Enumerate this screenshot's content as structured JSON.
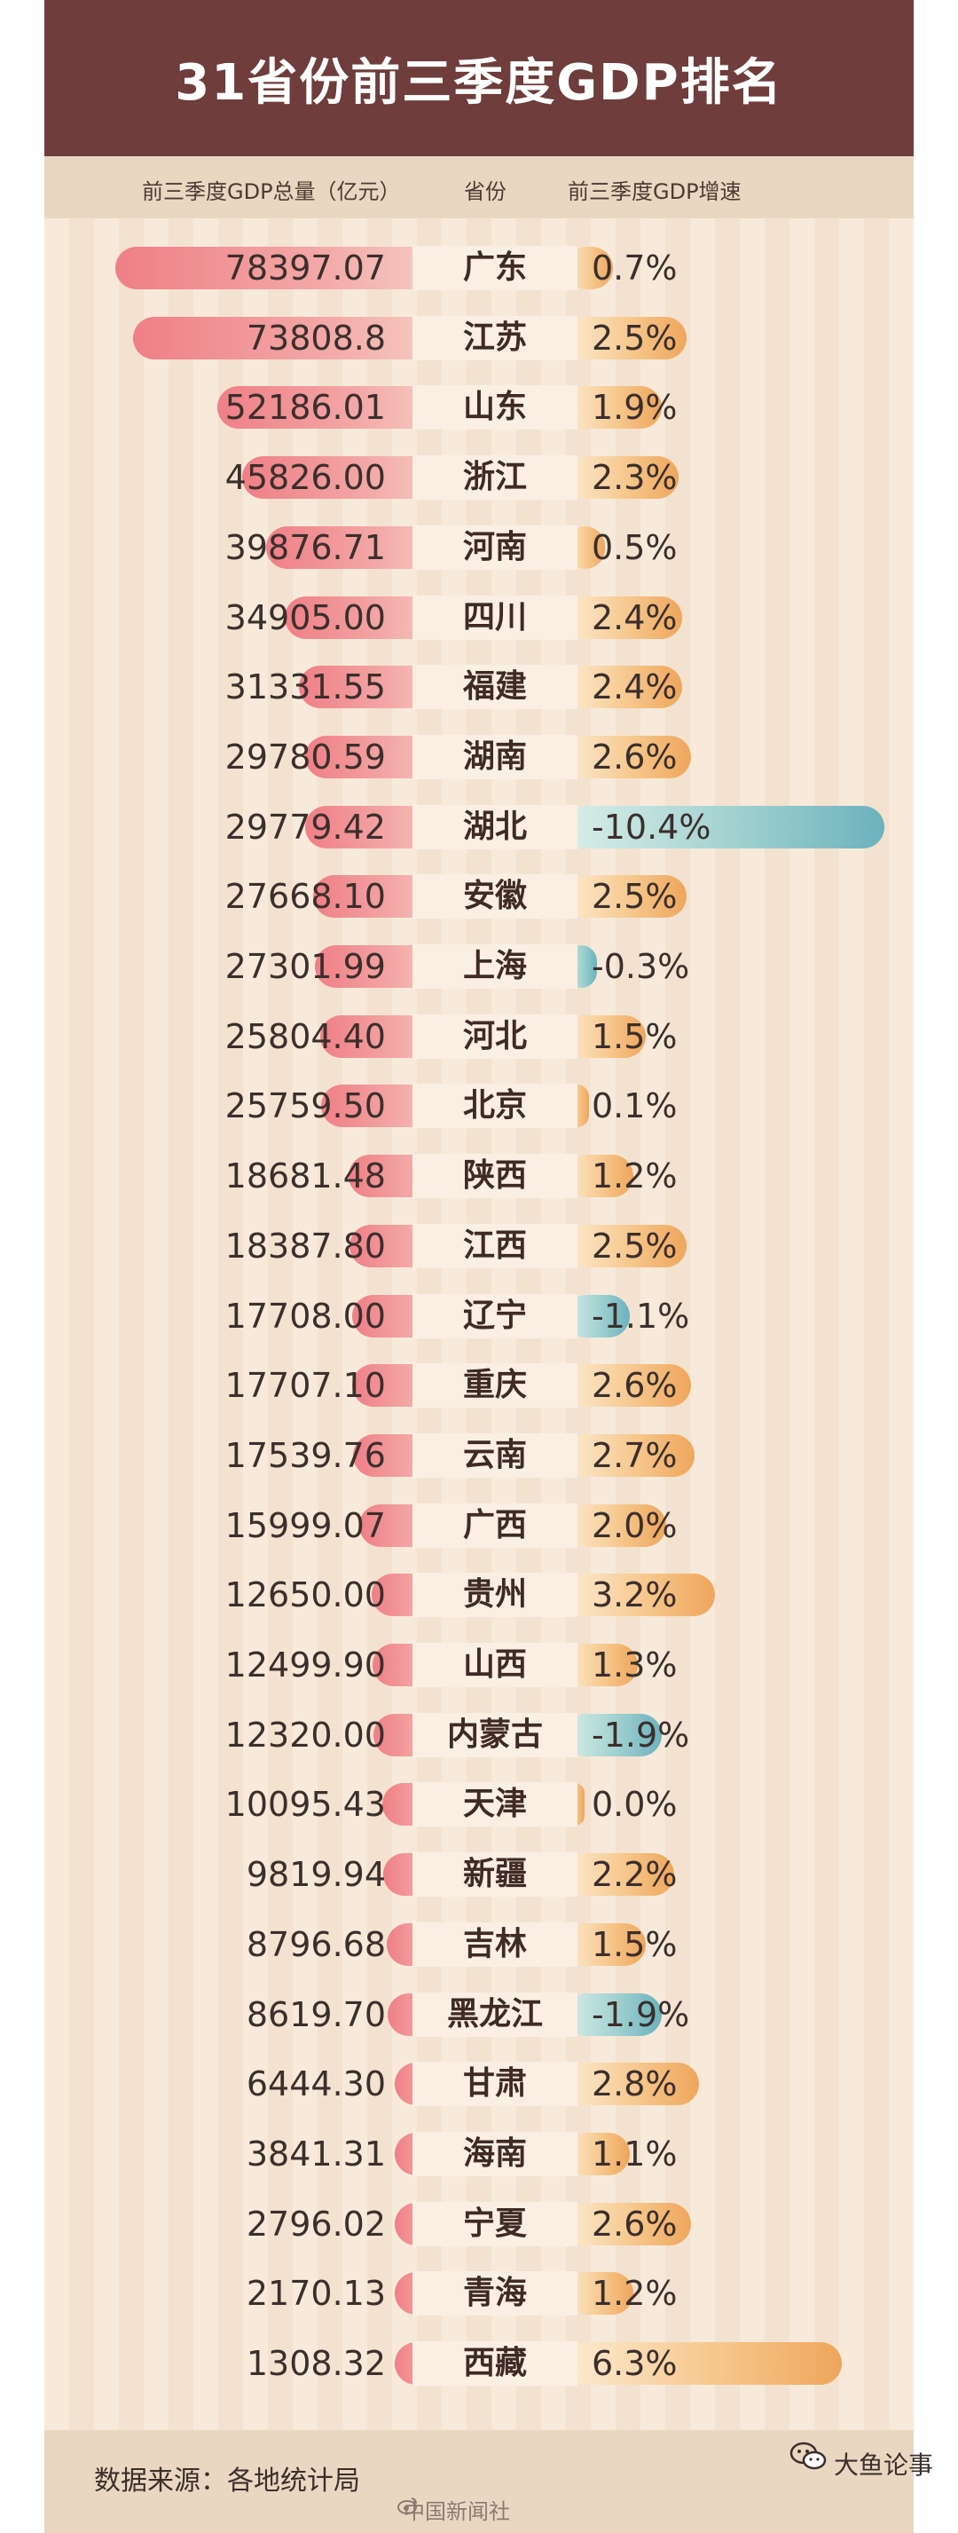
{
  "title": "31省份前三季度GDP排名",
  "header": {
    "gdp_col": "前三季度GDP总量（亿元）",
    "province_col": "省份",
    "growth_col": "前三季度GDP增速"
  },
  "chart_data": {
    "type": "bar",
    "title": "31省份前三季度GDP排名",
    "categories": [
      "广东",
      "江苏",
      "山东",
      "浙江",
      "河南",
      "四川",
      "福建",
      "湖南",
      "湖北",
      "安徽",
      "上海",
      "河北",
      "北京",
      "陕西",
      "江西",
      "辽宁",
      "重庆",
      "云南",
      "广西",
      "贵州",
      "山西",
      "内蒙古",
      "天津",
      "新疆",
      "吉林",
      "黑龙江",
      "甘肃",
      "海南",
      "宁夏",
      "青海",
      "西藏"
    ],
    "series": [
      {
        "name": "前三季度GDP总量（亿元）",
        "values": [
          78397.07,
          73808.8,
          52186.01,
          45826.0,
          39876.71,
          34905.0,
          31331.55,
          29780.59,
          29779.42,
          27668.1,
          27301.99,
          25804.4,
          25759.5,
          18681.48,
          18387.8,
          17708.0,
          17707.1,
          17539.76,
          15999.07,
          12650.0,
          12499.9,
          12320.0,
          10095.43,
          9819.94,
          8796.68,
          8619.7,
          6444.3,
          3841.31,
          2796.02,
          2170.13,
          1308.32
        ],
        "labels": [
          "78397.07",
          "73808.8",
          "52186.01",
          "45826.00",
          "39876.71",
          "34905.00",
          "31331.55",
          "29780.59",
          "29779.42",
          "27668.10",
          "27301.99",
          "25804.40",
          "25759.50",
          "18681.48",
          "18387.80",
          "17708.00",
          "17707.10",
          "17539.76",
          "15999.07",
          "12650.00",
          "12499.90",
          "12320.00",
          "10095.43",
          "9819.94",
          "8796.68",
          "8619.70",
          "6444.30",
          "3841.31",
          "2796.02",
          "2170.13",
          "1308.32"
        ]
      },
      {
        "name": "前三季度GDP增速",
        "values": [
          0.7,
          2.5,
          1.9,
          2.3,
          0.5,
          2.4,
          2.4,
          2.6,
          -10.4,
          2.5,
          -0.3,
          1.5,
          0.1,
          1.2,
          2.5,
          -1.1,
          2.6,
          2.7,
          2.0,
          3.2,
          1.3,
          -1.9,
          0.0,
          2.2,
          1.5,
          -1.9,
          2.8,
          1.1,
          2.6,
          1.2,
          6.3
        ],
        "labels": [
          "0.7%",
          "2.5%",
          "1.9%",
          "2.3%",
          "0.5%",
          "2.4%",
          "2.4%",
          "2.6%",
          "-10.4%",
          "2.5%",
          "-0.3%",
          "1.5%",
          "0.1%",
          "1.2%",
          "2.5%",
          "-1.1%",
          "2.6%",
          "2.7%",
          "2.0%",
          "3.2%",
          "1.3%",
          "-1.9%",
          "0.0%",
          "2.2%",
          "1.5%",
          "-1.9%",
          "2.8%",
          "1.1%",
          "2.6%",
          "1.2%",
          "6.3%"
        ]
      }
    ],
    "colors": {
      "gdp": "#ef7f86",
      "growth_positive": "#eea65c",
      "growth_negative": "#6cb2bd",
      "title_bar": "#6e3d3c"
    }
  },
  "footer": {
    "source": "数据来源：各地统计局",
    "credit": "中国新闻社",
    "wechat": "大鱼论事"
  },
  "icons": {
    "weibo": "weibo-icon",
    "wechat": "wechat-icon"
  }
}
